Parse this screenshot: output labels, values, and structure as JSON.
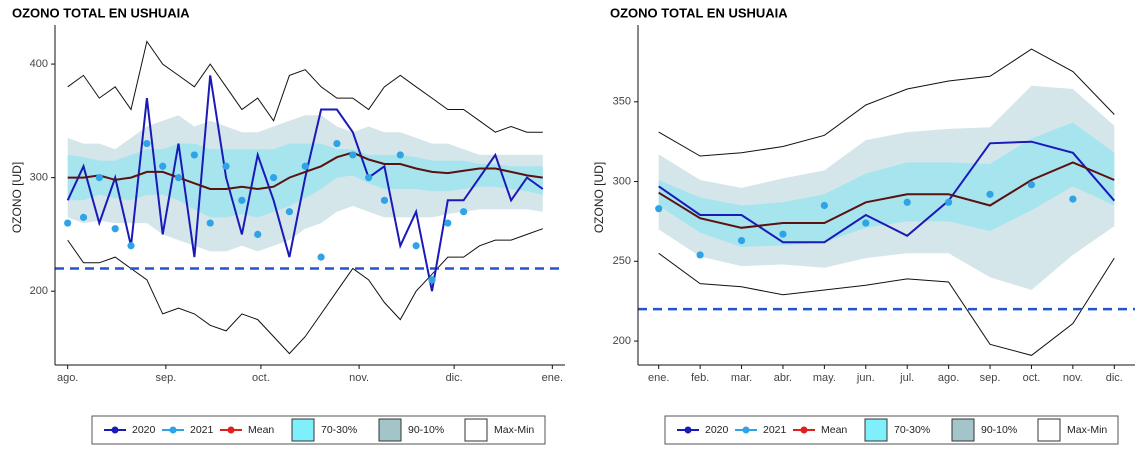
{
  "chart_data": [
    {
      "type": "line",
      "title": "OZONO TOTAL EN USHUAIA",
      "y_label": "OZONO [UD]",
      "x": [
        0,
        5,
        10,
        15,
        20,
        25,
        30,
        35,
        40,
        45,
        50,
        55,
        60,
        65,
        70,
        75,
        80,
        85,
        90,
        95,
        100,
        105,
        110,
        115,
        120,
        125,
        130,
        135,
        140,
        145,
        150
      ],
      "xlim": [
        -4,
        157
      ],
      "xticks": [
        {
          "value": 0,
          "label": "ago."
        },
        {
          "value": 31,
          "label": "sep."
        },
        {
          "value": 61,
          "label": "oct."
        },
        {
          "value": 92,
          "label": "nov."
        },
        {
          "value": 122,
          "label": "dic."
        },
        {
          "value": 153,
          "label": "ene."
        }
      ],
      "ylim": [
        135,
        430
      ],
      "yticks": [
        200,
        300,
        400
      ],
      "reference_line": {
        "value": 220,
        "color": "#2255cc"
      },
      "bands": [
        {
          "name": "70-30%",
          "color": "#a6e4ee",
          "legend_color": "#7ff0fb",
          "upper": [
            320,
            318,
            315,
            315,
            320,
            325,
            325,
            330,
            330,
            325,
            325,
            325,
            325,
            325,
            330,
            330,
            330,
            325,
            325,
            320,
            320,
            320,
            318,
            315,
            315,
            315,
            312,
            312,
            310,
            310,
            310
          ],
          "lower": [
            280,
            280,
            285,
            282,
            280,
            285,
            285,
            280,
            272,
            265,
            265,
            268,
            265,
            270,
            275,
            282,
            290,
            300,
            302,
            295,
            290,
            290,
            290,
            288,
            288,
            290,
            292,
            292,
            290,
            288,
            285
          ]
        },
        {
          "name": "90-10%",
          "color": "#d4e6ea",
          "legend_color": "#a3c4c8",
          "upper": [
            335,
            330,
            330,
            325,
            335,
            345,
            350,
            355,
            345,
            350,
            345,
            340,
            340,
            345,
            350,
            355,
            355,
            345,
            340,
            345,
            340,
            340,
            335,
            330,
            330,
            325,
            320,
            320,
            320,
            320,
            320
          ],
          "lower": [
            265,
            260,
            262,
            260,
            260,
            260,
            250,
            245,
            240,
            235,
            235,
            240,
            235,
            240,
            245,
            255,
            260,
            270,
            275,
            270,
            265,
            265,
            265,
            265,
            268,
            270,
            272,
            272,
            272,
            272,
            270
          ]
        },
        {
          "name": "Max-Min",
          "color": "#ffffff",
          "edge": "#111111",
          "upper": [
            380,
            390,
            370,
            380,
            360,
            420,
            400,
            390,
            380,
            400,
            380,
            360,
            370,
            350,
            390,
            395,
            380,
            370,
            370,
            360,
            380,
            390,
            380,
            370,
            360,
            360,
            350,
            340,
            345,
            340,
            340
          ],
          "lower": [
            245,
            225,
            225,
            230,
            220,
            210,
            180,
            185,
            180,
            170,
            165,
            180,
            175,
            160,
            145,
            160,
            180,
            200,
            220,
            210,
            190,
            175,
            200,
            215,
            230,
            230,
            240,
            245,
            245,
            250,
            255
          ]
        }
      ],
      "series": [
        {
          "name": "2020",
          "style": "line",
          "color": "#1a1ab8",
          "values": [
            280,
            310,
            260,
            300,
            240,
            370,
            250,
            330,
            230,
            390,
            300,
            250,
            320,
            280,
            230,
            300,
            360,
            360,
            340,
            300,
            310,
            240,
            270,
            200,
            280,
            280,
            300,
            320,
            280,
            300,
            290
          ]
        },
        {
          "name": "2021",
          "style": "points",
          "color": "#2ea3e6",
          "values": [
            260,
            265,
            300,
            255,
            240,
            330,
            310,
            300,
            320,
            260,
            310,
            280,
            250,
            300,
            270,
            310,
            230,
            330,
            320,
            300,
            280,
            320,
            240,
            210,
            260,
            270,
            null,
            null,
            null,
            null,
            null
          ]
        },
        {
          "name": "Mean",
          "style": "line",
          "color": "#5c1010",
          "legend_color": "#e0201c",
          "values": [
            300,
            300,
            302,
            298,
            300,
            305,
            305,
            300,
            295,
            290,
            290,
            292,
            290,
            292,
            300,
            305,
            310,
            318,
            322,
            316,
            312,
            312,
            308,
            305,
            304,
            306,
            308,
            308,
            305,
            302,
            300
          ]
        }
      ]
    },
    {
      "type": "line",
      "title": "OZONO TOTAL EN USHUAIA",
      "y_label": "OZONO [UD]",
      "categories": [
        "ene.",
        "feb.",
        "mar.",
        "abr.",
        "may.",
        "jun.",
        "jul.",
        "ago.",
        "sep.",
        "oct.",
        "nov.",
        "dic."
      ],
      "ylim": [
        185,
        395
      ],
      "yticks": [
        200,
        250,
        300,
        350
      ],
      "reference_line": {
        "value": 220,
        "color": "#2255cc"
      },
      "bands": [
        {
          "name": "70-30%",
          "color": "#a6e4ee",
          "legend_color": "#7ff0fb",
          "upper": [
            301,
            290,
            285,
            287,
            292,
            305,
            312,
            312,
            311,
            327,
            337,
            318
          ],
          "lower": [
            285,
            268,
            259,
            260,
            262,
            271,
            275,
            275,
            269,
            282,
            297,
            285
          ]
        },
        {
          "name": "90-10%",
          "color": "#d4e6ea",
          "legend_color": "#a3c4c8",
          "upper": [
            317,
            301,
            296,
            302,
            307,
            326,
            331,
            333,
            334,
            360,
            358,
            335
          ],
          "lower": [
            270,
            253,
            247,
            248,
            246,
            252,
            255,
            255,
            240,
            232,
            254,
            272
          ]
        },
        {
          "name": "Max-Min",
          "color": "#ffffff",
          "edge": "#111111",
          "upper": [
            331,
            316,
            318,
            322,
            329,
            348,
            358,
            363,
            366,
            383,
            369,
            342
          ],
          "lower": [
            255,
            236,
            234,
            229,
            232,
            235,
            239,
            237,
            198,
            191,
            211,
            252
          ]
        }
      ],
      "series": [
        {
          "name": "2020",
          "style": "line",
          "color": "#1a1ab8",
          "values": [
            297,
            279,
            279,
            262,
            262,
            279,
            266,
            288,
            324,
            325,
            318,
            288
          ]
        },
        {
          "name": "2021",
          "style": "points",
          "color": "#2ea3e6",
          "values": [
            283,
            254,
            263,
            267,
            285,
            274,
            287,
            287,
            292,
            298,
            289,
            null
          ]
        },
        {
          "name": "Mean",
          "style": "line",
          "color": "#5c1010",
          "legend_color": "#e0201c",
          "values": [
            293,
            277,
            271,
            274,
            274,
            287,
            292,
            292,
            285,
            301,
            312,
            301
          ]
        }
      ]
    }
  ]
}
